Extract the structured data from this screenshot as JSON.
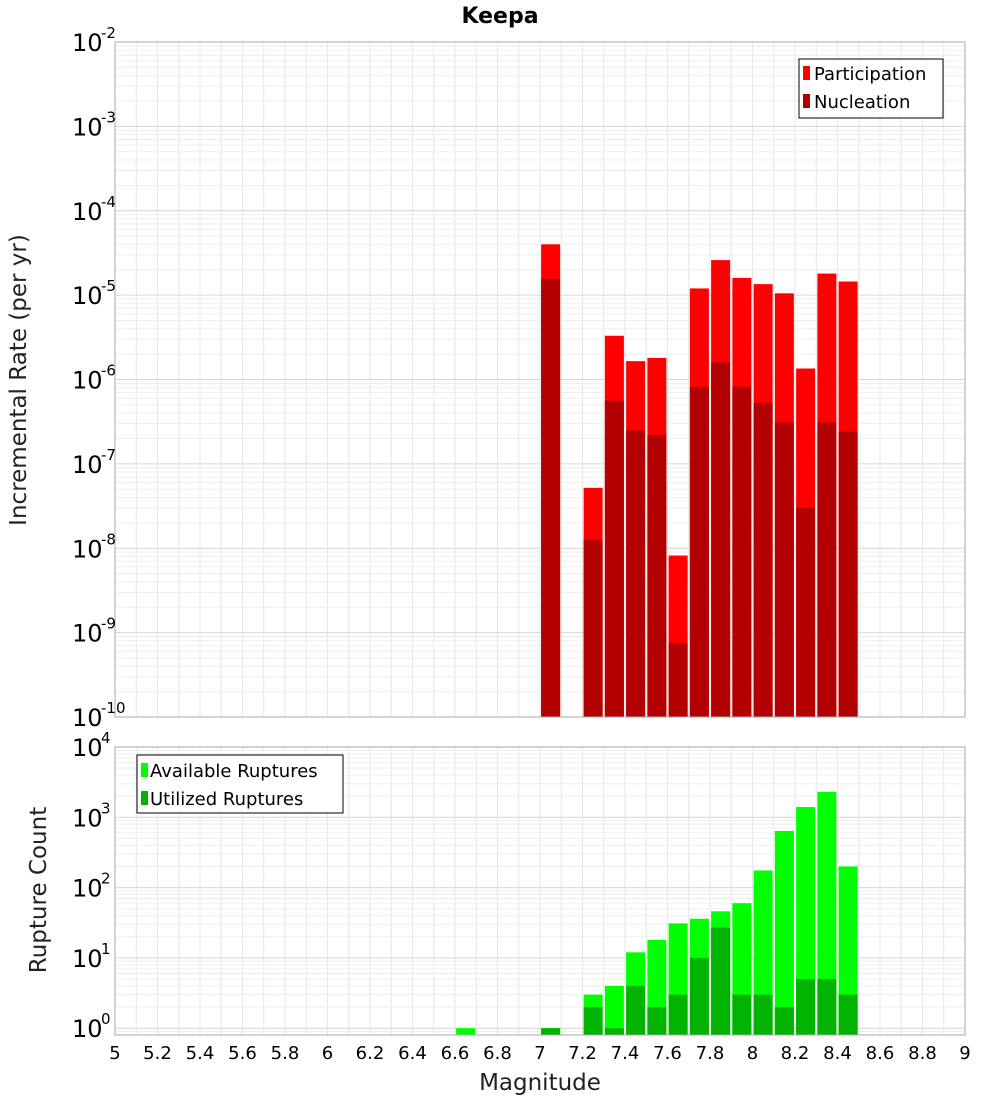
{
  "chart_data": [
    {
      "type": "bar",
      "title": "Keepa",
      "xlabel": "",
      "ylabel": "Incremental Rate (per yr)",
      "yscale": "log",
      "ylim": [
        1e-10,
        0.01
      ],
      "xlim": [
        5,
        9
      ],
      "grid": true,
      "legend_position": "top-right",
      "y_tick_labels": [
        {
          "base": "10",
          "exp": "-10"
        },
        {
          "base": "10",
          "exp": "-9"
        },
        {
          "base": "10",
          "exp": "-8"
        },
        {
          "base": "10",
          "exp": "-7"
        },
        {
          "base": "10",
          "exp": "-6"
        },
        {
          "base": "10",
          "exp": "-5"
        },
        {
          "base": "10",
          "exp": "-4"
        },
        {
          "base": "10",
          "exp": "-3"
        },
        {
          "base": "10",
          "exp": "-2"
        }
      ],
      "x": [
        7.05,
        7.25,
        7.35,
        7.45,
        7.55,
        7.65,
        7.75,
        7.85,
        7.95,
        8.05,
        8.15,
        8.25,
        8.35,
        8.45
      ],
      "series": [
        {
          "name": "Participation",
          "color": "#ff0000",
          "values": [
            4e-05,
            5.2e-08,
            3.3e-06,
            1.65e-06,
            1.8e-06,
            8.2e-09,
            1.2e-05,
            2.6e-05,
            1.6e-05,
            1.35e-05,
            1.05e-05,
            1.35e-06,
            1.8e-05,
            1.45e-05
          ]
        },
        {
          "name": "Nucleation",
          "color": "#b30000",
          "values": [
            1.55e-05,
            1.25e-08,
            5.6e-07,
            2.5e-07,
            2.2e-07,
            7.5e-10,
            8.2e-07,
            1.6e-06,
            8.2e-07,
            5.3e-07,
            3.1e-07,
            3e-08,
            3.1e-07,
            2.4e-07
          ]
        }
      ]
    },
    {
      "type": "bar",
      "title": "",
      "xlabel": "Magnitude",
      "ylabel": "Rupture Count",
      "yscale": "log",
      "ylim": [
        0.8,
        10000
      ],
      "xlim": [
        5,
        9
      ],
      "grid": true,
      "legend_position": "top-left",
      "y_tick_labels": [
        {
          "base": "10",
          "exp": "0"
        },
        {
          "base": "10",
          "exp": "1"
        },
        {
          "base": "10",
          "exp": "2"
        },
        {
          "base": "10",
          "exp": "3"
        },
        {
          "base": "10",
          "exp": "4"
        }
      ],
      "x_tick_labels": [
        "5",
        "5.2",
        "5.4",
        "5.6",
        "5.8",
        "6",
        "6.2",
        "6.4",
        "6.6",
        "6.8",
        "7",
        "7.2",
        "7.4",
        "7.6",
        "7.8",
        "8",
        "8.2",
        "8.4",
        "8.6",
        "8.8",
        "9"
      ],
      "x": [
        6.65,
        7.05,
        7.25,
        7.35,
        7.45,
        7.55,
        7.65,
        7.75,
        7.85,
        7.95,
        8.05,
        8.15,
        8.25,
        8.35,
        8.45
      ],
      "series": [
        {
          "name": "Available Ruptures",
          "color": "#00ff00",
          "values": [
            1,
            1,
            3,
            4,
            12,
            18,
            31,
            36,
            46,
            60,
            175,
            640,
            1400,
            2300,
            200
          ]
        },
        {
          "name": "Utilized Ruptures",
          "color": "#00b300",
          "values": [
            0,
            1,
            2,
            1,
            4,
            2,
            3,
            10,
            27,
            3,
            3,
            2,
            5,
            5,
            3
          ]
        }
      ]
    }
  ]
}
